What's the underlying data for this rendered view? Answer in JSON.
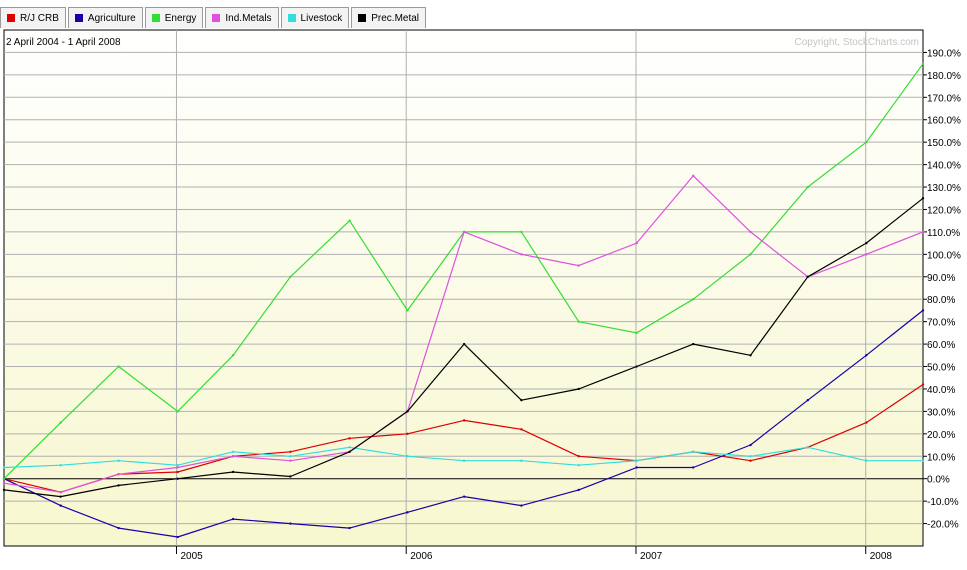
{
  "chart_data": {
    "type": "line",
    "subtitle": "2 April 2004 - 1 April 2008",
    "copyright": "Copyright, StockCharts.com",
    "x_ticks": [
      "2005",
      "2006",
      "2007",
      "2008"
    ],
    "ylim": [
      -30,
      200
    ],
    "y_ticks": [
      "190.0%",
      "180.0%",
      "170.0%",
      "160.0%",
      "150.0%",
      "140.0%",
      "130.0%",
      "120.0%",
      "110.0%",
      "100.0%",
      "90.0%",
      "80.0%",
      "70.0%",
      "60.0%",
      "50.0%",
      "40.0%",
      "30.0%",
      "20.0%",
      "10.0%",
      "0.0%",
      "-10.0%",
      "-20.0%"
    ],
    "grid": true,
    "legend_position": "top-left",
    "x": [
      "2004-04-02",
      "2004-07-01",
      "2004-10-01",
      "2005-01-03",
      "2005-04-01",
      "2005-07-01",
      "2005-10-03",
      "2006-01-03",
      "2006-04-03",
      "2006-07-03",
      "2006-10-02",
      "2007-01-02",
      "2007-04-02",
      "2007-07-02",
      "2007-10-01",
      "2008-01-02",
      "2008-04-01"
    ],
    "series": [
      {
        "name": "R/J CRB",
        "color": "#dd0000",
        "values": [
          0,
          -6,
          2,
          3,
          10,
          12,
          18,
          20,
          26,
          22,
          10,
          8,
          12,
          8,
          14,
          25,
          42
        ]
      },
      {
        "name": "Agriculture",
        "color": "#1a00a8",
        "values": [
          0,
          -12,
          -22,
          -26,
          -18,
          -20,
          -22,
          -15,
          -8,
          -12,
          -5,
          5,
          5,
          15,
          35,
          55,
          75
        ]
      },
      {
        "name": "Energy",
        "color": "#33dd33",
        "values": [
          0,
          25,
          50,
          30,
          55,
          90,
          115,
          75,
          110,
          110,
          70,
          65,
          80,
          100,
          130,
          150,
          185
        ]
      },
      {
        "name": "Ind.Metals",
        "color": "#e050e0",
        "values": [
          -2,
          -6,
          2,
          5,
          10,
          8,
          12,
          30,
          110,
          100,
          95,
          105,
          135,
          110,
          90,
          100,
          110
        ]
      },
      {
        "name": "Livestock",
        "color": "#33dddd",
        "values": [
          5,
          6,
          8,
          6,
          12,
          10,
          14,
          10,
          8,
          8,
          6,
          8,
          12,
          10,
          14,
          8,
          8
        ]
      },
      {
        "name": "Prec.Metal",
        "color": "#000000",
        "values": [
          -5,
          -8,
          -3,
          0,
          3,
          1,
          12,
          30,
          60,
          35,
          40,
          50,
          60,
          55,
          90,
          105,
          125
        ]
      }
    ]
  }
}
